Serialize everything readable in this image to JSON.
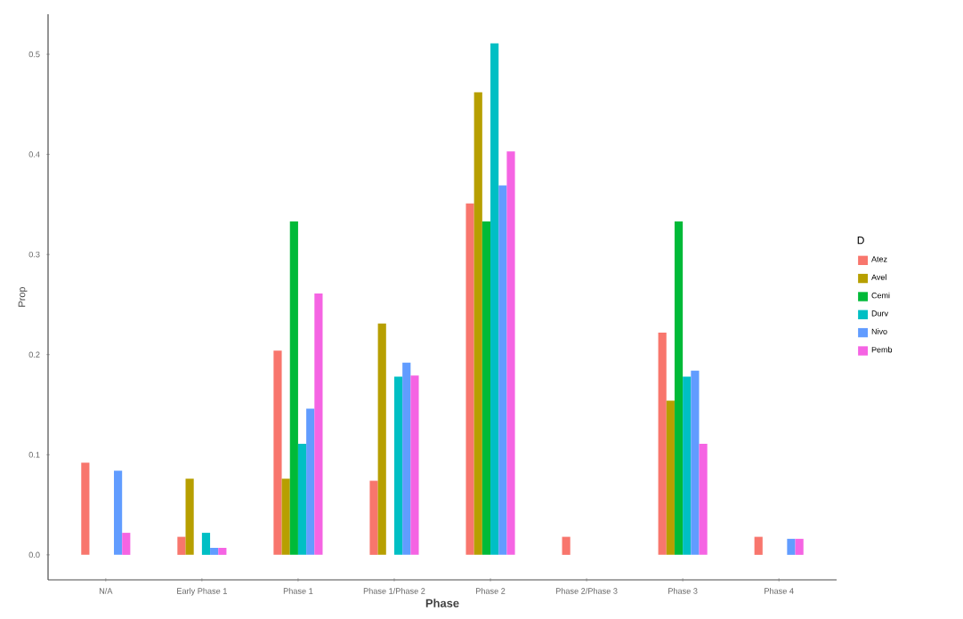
{
  "chart_data": {
    "type": "bar",
    "xlabel": "Phase",
    "ylabel": "Prop",
    "legend_title": "D",
    "legend": "right",
    "categories": [
      "N/A",
      "Early Phase 1",
      "Phase 1",
      "Phase 1/Phase 2",
      "Phase 2",
      "Phase 2/Phase 3",
      "Phase 3",
      "Phase 4"
    ],
    "ylim": [
      -0.025,
      0.54
    ],
    "yticks": [
      {
        "value": 0,
        "label": "0.0"
      },
      0.1,
      0.2,
      0.3,
      0.4,
      0.5
    ],
    "series": [
      {
        "name": "Atez",
        "color": "#f8766d",
        "values": [
          0.092,
          0.018,
          0.204,
          0.074,
          0.351,
          0.018,
          0.222,
          0.018
        ]
      },
      {
        "name": "Avel",
        "color": "#b79f00",
        "values": [
          null,
          0.076,
          0.076,
          0.231,
          0.462,
          null,
          0.154,
          null
        ]
      },
      {
        "name": "Cemi",
        "color": "#00ba38",
        "values": [
          null,
          null,
          0.333,
          null,
          0.333,
          null,
          0.333,
          null
        ]
      },
      {
        "name": "Durv",
        "color": "#00bfc4",
        "values": [
          null,
          0.022,
          0.111,
          0.178,
          0.511,
          null,
          0.178,
          null
        ]
      },
      {
        "name": "Nivo",
        "color": "#619cff",
        "values": [
          0.084,
          0.007,
          0.146,
          0.192,
          0.369,
          null,
          0.184,
          0.016
        ]
      },
      {
        "name": "Pemb",
        "color": "#f564e3",
        "values": [
          0.022,
          0.007,
          0.261,
          0.179,
          0.403,
          null,
          0.111,
          0.016
        ]
      }
    ]
  }
}
